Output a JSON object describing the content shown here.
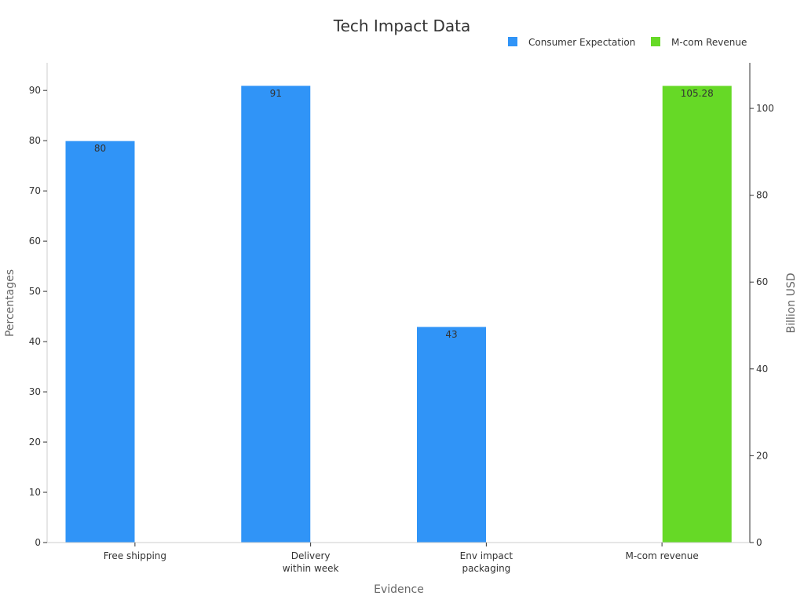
{
  "chart_data": {
    "type": "bar",
    "title": "Tech Impact Data",
    "xlabel": "Evidence",
    "ylabel": "Percentages",
    "y2label": "Billion USD",
    "categories": [
      [
        "Free shipping"
      ],
      [
        "Delivery",
        "within week"
      ],
      [
        "Env impact",
        "packaging"
      ],
      [
        "M-com revenue"
      ]
    ],
    "ylim": [
      0,
      95.5
    ],
    "y2lim": [
      0,
      110.5
    ],
    "yticks": [
      0,
      10,
      20,
      30,
      40,
      50,
      60,
      70,
      80,
      90
    ],
    "y2ticks": [
      0,
      20,
      40,
      60,
      80,
      100
    ],
    "legend_position": "top-right",
    "series": [
      {
        "name": "Consumer Expectation",
        "axis": "left",
        "color": "#3094f7",
        "values": [
          80,
          91,
          43,
          null
        ],
        "labels": [
          "80",
          "91",
          "43",
          ""
        ]
      },
      {
        "name": "M-com Revenue",
        "axis": "right",
        "color": "#66d926",
        "values": [
          null,
          null,
          null,
          105.28
        ],
        "labels": [
          "",
          "",
          "",
          "105.28"
        ]
      }
    ]
  }
}
